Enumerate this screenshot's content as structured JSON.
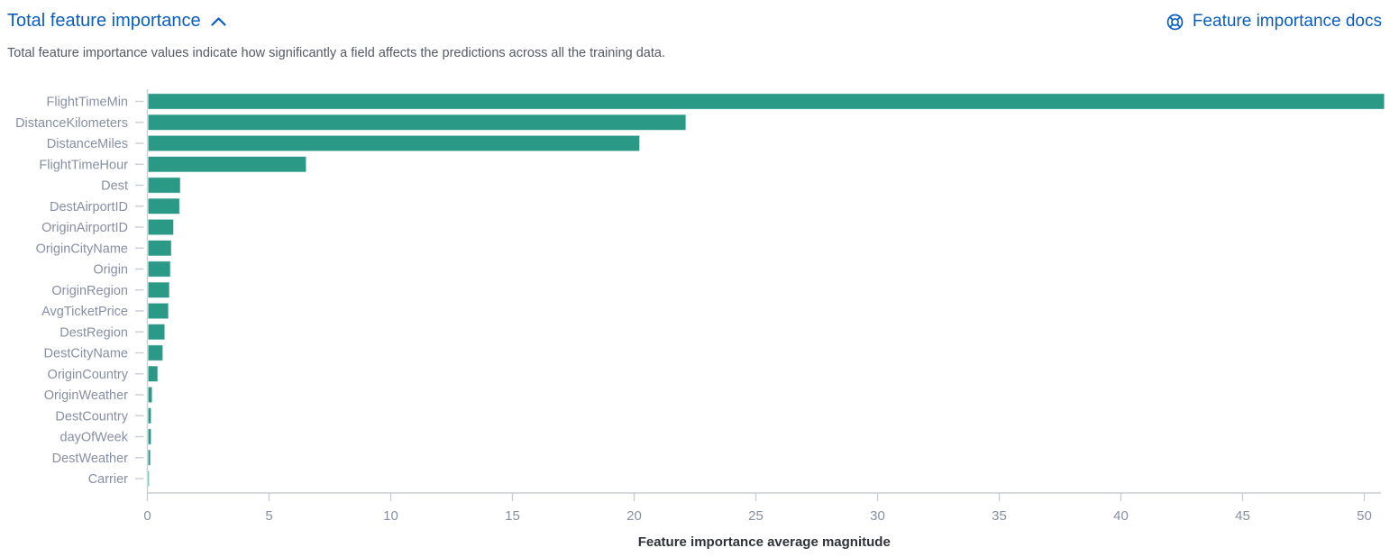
{
  "header": {
    "title": "Total feature importance",
    "docs_link_label": "Feature importance docs"
  },
  "description": "Total feature importance values indicate how significantly a field affects the predictions across all the training data.",
  "colors": {
    "link_blue": "#0a5dc1",
    "bar_teal": "#2a9a87",
    "axis_line": "#c9cdd6",
    "axis_text": "#878fa3",
    "axis_title_text": "#2f3338",
    "description_text": "#545a64"
  },
  "icons": {
    "collapse": "chevron-up-icon",
    "docs": "help-lifering-icon"
  },
  "chart_data": {
    "type": "bar",
    "orientation": "horizontal",
    "title": "",
    "xlabel": "Feature importance average magnitude",
    "ylabel": "",
    "grid": false,
    "legend": false,
    "xlim": [
      0,
      51
    ],
    "xticks": [
      0,
      5,
      10,
      15,
      20,
      25,
      30,
      35,
      40,
      45,
      50
    ],
    "categories": [
      "FlightTimeMin",
      "DistanceKilometers",
      "DistanceMiles",
      "FlightTimeHour",
      "Dest",
      "DestAirportID",
      "OriginAirportID",
      "OriginCityName",
      "Origin",
      "OriginRegion",
      "AvgTicketPrice",
      "DestRegion",
      "DestCityName",
      "OriginCountry",
      "OriginWeather",
      "DestCountry",
      "dayOfWeek",
      "DestWeather",
      "Carrier"
    ],
    "values": [
      50.8,
      22.1,
      20.2,
      6.5,
      1.33,
      1.3,
      1.05,
      0.96,
      0.92,
      0.88,
      0.84,
      0.69,
      0.61,
      0.4,
      0.17,
      0.13,
      0.13,
      0.1,
      0.05
    ]
  }
}
